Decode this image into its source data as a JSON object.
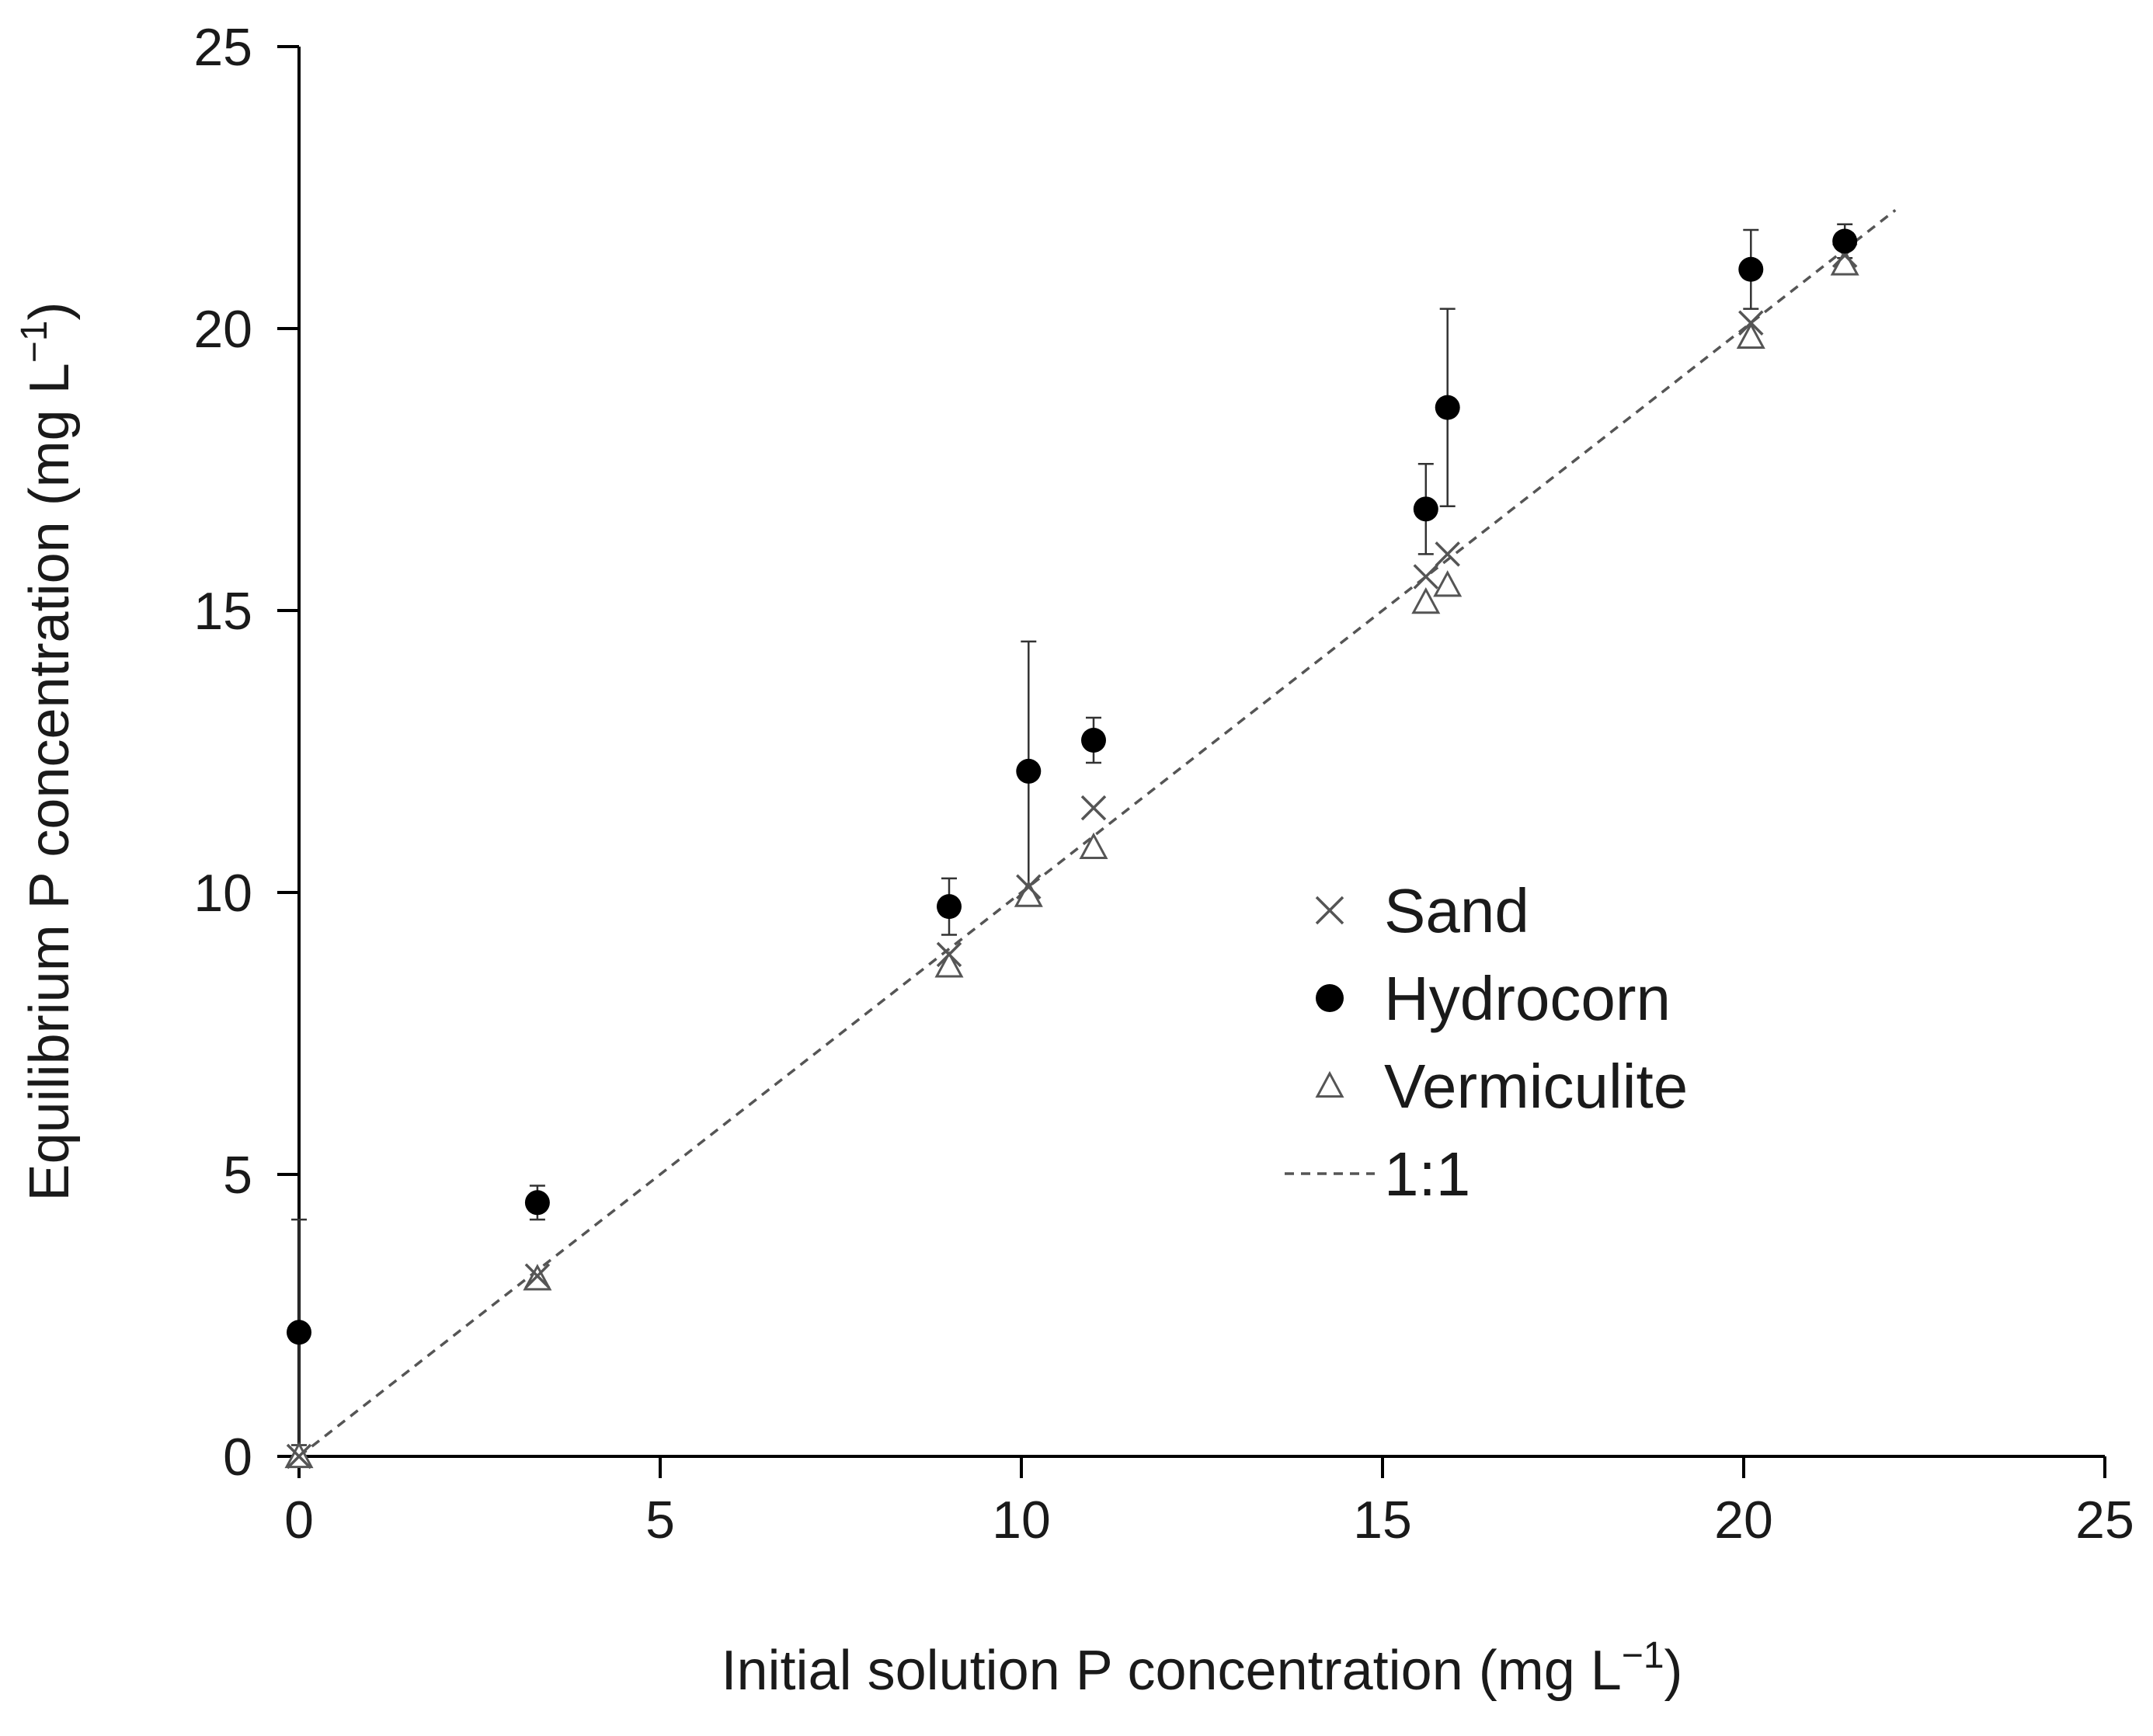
{
  "chart_data": {
    "type": "scatter",
    "title": "",
    "xlabel": "Initial solution P concentration (mg L",
    "xlabel_sup": "−1",
    "xlabel_end": ")",
    "ylabel": "Equilibrium P concentration (mg L",
    "ylabel_sup": "−1",
    "ylabel_end": ")",
    "xlim": [
      0,
      25
    ],
    "ylim": [
      0,
      25
    ],
    "xticks": [
      "0",
      "5",
      "10",
      "15",
      "20",
      "25"
    ],
    "yticks": [
      "0",
      "5",
      "10",
      "15",
      "20",
      "25"
    ],
    "grid": false,
    "legend_position": "center-right",
    "x": [
      0,
      3.3,
      9,
      10.1,
      11,
      15.6,
      15.9,
      20.1,
      21.4
    ],
    "series": [
      {
        "name": "Sand",
        "marker": "x",
        "color": "#555555",
        "values": [
          0,
          3.2,
          8.9,
          10.1,
          11.5,
          15.6,
          16.0,
          20.1,
          21.3
        ]
      },
      {
        "name": "Hydrocorn",
        "marker": "filled-circle",
        "color": "#000000",
        "values": [
          2.2,
          4.5,
          9.75,
          12.15,
          12.7,
          16.8,
          18.6,
          21.05,
          21.55
        ],
        "error": [
          2.0,
          0.3,
          0.5,
          2.3,
          0.4,
          0.8,
          1.75,
          0.7,
          0.3
        ]
      },
      {
        "name": "Vermiculite",
        "marker": "open-triangle",
        "color": "#555555",
        "values": [
          0,
          3.15,
          8.7,
          9.95,
          10.8,
          15.15,
          15.45,
          19.85,
          21.15
        ]
      },
      {
        "name": "1:1",
        "marker": "dashed-line",
        "color": "#555555",
        "line_x": [
          0,
          22.1
        ],
        "line_y": [
          0,
          22.1
        ]
      }
    ]
  }
}
